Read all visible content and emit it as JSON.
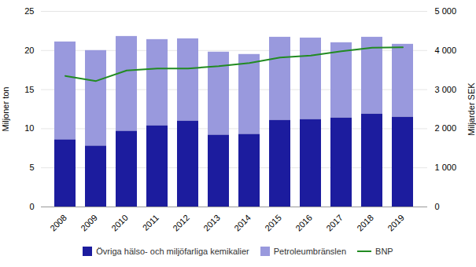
{
  "chart_data": {
    "type": "bar",
    "stacked": true,
    "categories": [
      "2008",
      "2009",
      "2010",
      "2011",
      "2012",
      "2013",
      "2014",
      "2015",
      "2016",
      "2017",
      "2018",
      "2019"
    ],
    "series": [
      {
        "name": "Övriga hälso- och miljöfarliga kemikalier",
        "type": "bar",
        "color": "#1c1c9e",
        "values": [
          8.6,
          7.8,
          9.7,
          10.4,
          11.0,
          9.2,
          9.3,
          11.1,
          11.2,
          11.4,
          11.9,
          11.5
        ]
      },
      {
        "name": "Petroleumbränslen",
        "type": "bar",
        "color": "#9999dd",
        "values": [
          12.5,
          12.2,
          12.1,
          11.0,
          10.5,
          10.6,
          10.2,
          10.6,
          10.4,
          9.6,
          9.8,
          9.3
        ]
      },
      {
        "name": "BNP",
        "type": "line",
        "color": "#228b22",
        "axis": "y2",
        "values": [
          3350,
          3220,
          3490,
          3540,
          3540,
          3600,
          3680,
          3820,
          3870,
          3980,
          4070,
          4080
        ]
      }
    ],
    "ylabel": "Miljoner ton",
    "y2label": "Miljarder SEK",
    "ylim": [
      0,
      25
    ],
    "yticks": [
      0,
      5,
      10,
      15,
      20,
      25
    ],
    "y2lim": [
      0,
      5000
    ],
    "y2ticks": [
      0,
      {
        "value": 1000,
        "label": "1 000"
      },
      {
        "value": 2000,
        "label": "2 000"
      },
      {
        "value": 3000,
        "label": "3 000"
      },
      {
        "value": 4000,
        "label": "4 000"
      },
      {
        "value": 5000,
        "label": "5 000"
      }
    ],
    "grid": true,
    "legend": "bottom"
  }
}
